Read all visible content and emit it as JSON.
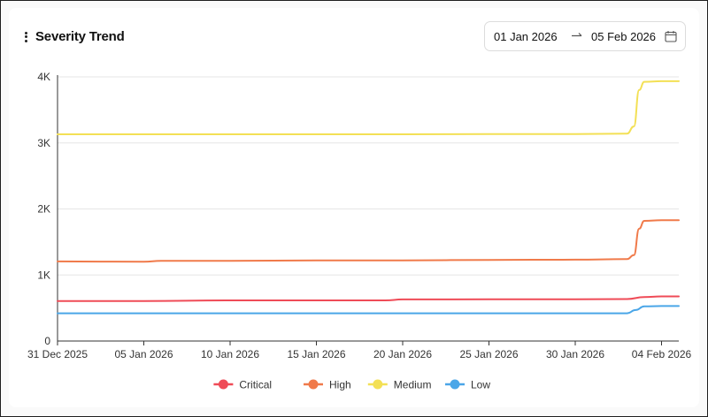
{
  "header": {
    "title": "Severity Trend",
    "menu_icon": "kebab-menu-icon"
  },
  "date_range": {
    "start": "01 Jan 2026",
    "end": "05 Feb 2026",
    "arrow_icon": "arrow-right-icon",
    "calendar_icon": "calendar-icon"
  },
  "chart_data": {
    "type": "line",
    "title": "",
    "xlabel": "",
    "ylabel": "",
    "x_range": [
      "2025-12-31",
      "2026-02-05"
    ],
    "ylim": [
      0,
      4000
    ],
    "y_ticks": [
      0,
      1000,
      2000,
      3000,
      4000
    ],
    "y_tick_labels": [
      "0",
      "1K",
      "2K",
      "3K",
      "4K"
    ],
    "x_ticks": [
      "2025-12-31",
      "2026-01-05",
      "2026-01-10",
      "2026-01-15",
      "2026-01-20",
      "2026-01-25",
      "2026-01-30",
      "2026-02-04"
    ],
    "x_tick_labels": [
      "31 Dec 2025",
      "05 Jan 2026",
      "10 Jan 2026",
      "15 Jan 2026",
      "20 Jan 2026",
      "25 Jan 2026",
      "30 Jan 2026",
      "04 Feb 2026"
    ],
    "grid": "horizontal",
    "legend_position": "bottom-center",
    "series": [
      {
        "name": "Critical",
        "color": "#ef4b57",
        "points": [
          [
            "2025-12-31",
            605
          ],
          [
            "2026-01-05",
            605
          ],
          [
            "2026-01-10",
            615
          ],
          [
            "2026-01-15",
            615
          ],
          [
            "2026-01-19",
            615
          ],
          [
            "2026-01-20",
            630
          ],
          [
            "2026-01-25",
            632
          ],
          [
            "2026-01-30",
            632
          ],
          [
            "2026-02-02",
            635
          ],
          [
            "2026-02-03",
            665
          ],
          [
            "2026-02-04",
            675
          ],
          [
            "2026-02-05",
            675
          ]
        ]
      },
      {
        "name": "High",
        "color": "#f07a4a",
        "points": [
          [
            "2025-12-31",
            1205
          ],
          [
            "2026-01-05",
            1200
          ],
          [
            "2026-01-06",
            1215
          ],
          [
            "2026-01-10",
            1215
          ],
          [
            "2026-01-15",
            1220
          ],
          [
            "2026-01-20",
            1222
          ],
          [
            "2026-01-25",
            1228
          ],
          [
            "2026-01-30",
            1232
          ],
          [
            "2026-02-02",
            1240
          ],
          [
            "2026-02-02.4",
            1300
          ],
          [
            "2026-02-02.7",
            1700
          ],
          [
            "2026-02-03",
            1820
          ],
          [
            "2026-02-04",
            1830
          ],
          [
            "2026-02-05",
            1830
          ]
        ]
      },
      {
        "name": "Medium",
        "color": "#f3e055",
        "points": [
          [
            "2025-12-31",
            3130
          ],
          [
            "2026-01-05",
            3130
          ],
          [
            "2026-01-10",
            3130
          ],
          [
            "2026-01-15",
            3130
          ],
          [
            "2026-01-20",
            3130
          ],
          [
            "2026-01-25",
            3133
          ],
          [
            "2026-01-30",
            3135
          ],
          [
            "2026-02-02",
            3140
          ],
          [
            "2026-02-02.4",
            3250
          ],
          [
            "2026-02-02.7",
            3800
          ],
          [
            "2026-02-03",
            3925
          ],
          [
            "2026-02-04",
            3935
          ],
          [
            "2026-02-05",
            3935
          ]
        ]
      },
      {
        "name": "Low",
        "color": "#4aa6e8",
        "points": [
          [
            "2025-12-31",
            420
          ],
          [
            "2026-01-05",
            420
          ],
          [
            "2026-01-10",
            420
          ],
          [
            "2026-01-15",
            420
          ],
          [
            "2026-01-20",
            420
          ],
          [
            "2026-01-25",
            420
          ],
          [
            "2026-01-30",
            420
          ],
          [
            "2026-02-02",
            420
          ],
          [
            "2026-02-02.5",
            470
          ],
          [
            "2026-02-03",
            525
          ],
          [
            "2026-02-04",
            530
          ],
          [
            "2026-02-05",
            530
          ]
        ]
      }
    ]
  }
}
